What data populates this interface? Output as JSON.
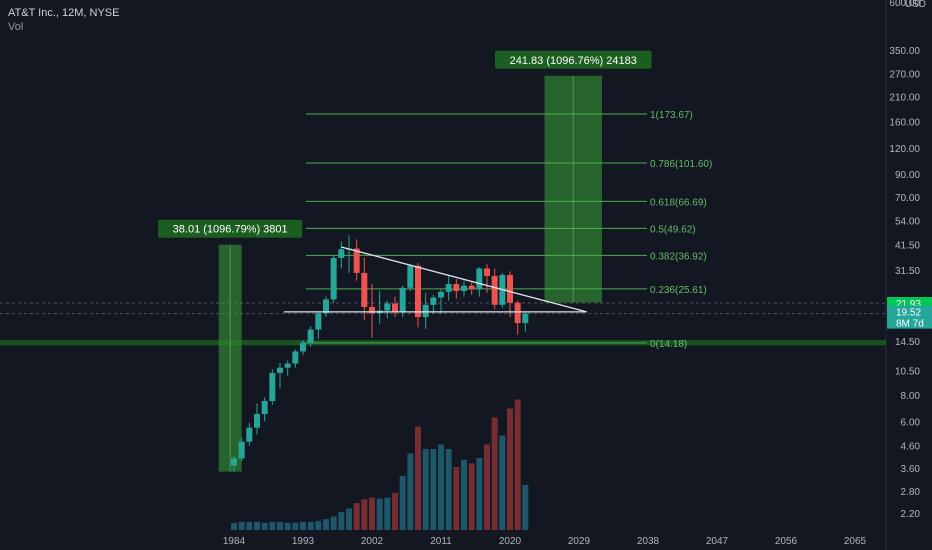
{
  "header": {
    "symbol": "AT&T Inc., 12M, NYSE",
    "vol_label": "Vol",
    "currency": "USD"
  },
  "colors": {
    "bg": "#131722",
    "up": "#26a69a",
    "down": "#ef5350",
    "fib": "#4caf50",
    "box": "#1b5e20",
    "label_bg": "#1b5e20",
    "axis_text": "#b2b5be"
  },
  "chart_data": {
    "type": "candlestick",
    "y_scale": "log",
    "y_ticks": [
      2.2,
      2.8,
      3.6,
      4.6,
      6.0,
      8.0,
      10.5,
      14.5,
      19.52,
      21.93,
      31.5,
      41.5,
      54.0,
      70.0,
      90.0,
      120.0,
      160.0,
      210.0,
      270.0,
      350.0,
      600.0
    ],
    "x_ticks": [
      "1984",
      "1993",
      "2002",
      "2011",
      "2020",
      "2029",
      "2038",
      "2047",
      "2056",
      "2065"
    ],
    "candles": [
      {
        "year": 1984,
        "o": 3.7,
        "h": 4.1,
        "l": 3.45,
        "c": 4.0
      },
      {
        "year": 1985,
        "o": 4.0,
        "h": 5.0,
        "l": 3.9,
        "c": 4.8
      },
      {
        "year": 1986,
        "o": 4.8,
        "h": 5.9,
        "l": 4.6,
        "c": 5.6
      },
      {
        "year": 1987,
        "o": 5.6,
        "h": 7.3,
        "l": 5.2,
        "c": 6.5
      },
      {
        "year": 1988,
        "o": 6.5,
        "h": 7.8,
        "l": 6.0,
        "c": 7.5
      },
      {
        "year": 1989,
        "o": 7.5,
        "h": 10.6,
        "l": 7.2,
        "c": 10.2
      },
      {
        "year": 1990,
        "o": 10.2,
        "h": 11.4,
        "l": 8.6,
        "c": 10.8
      },
      {
        "year": 1991,
        "o": 10.8,
        "h": 11.7,
        "l": 9.9,
        "c": 11.3
      },
      {
        "year": 1992,
        "o": 11.3,
        "h": 13.2,
        "l": 10.8,
        "c": 12.9
      },
      {
        "year": 1993,
        "o": 12.9,
        "h": 14.6,
        "l": 12.4,
        "c": 14.2
      },
      {
        "year": 1994,
        "o": 14.2,
        "h": 17.0,
        "l": 13.6,
        "c": 16.4
      },
      {
        "year": 1995,
        "o": 16.4,
        "h": 20.0,
        "l": 14.8,
        "c": 19.6
      },
      {
        "year": 1996,
        "o": 19.6,
        "h": 23.5,
        "l": 18.8,
        "c": 22.8
      },
      {
        "year": 1997,
        "o": 22.8,
        "h": 37.0,
        "l": 21.9,
        "c": 35.9
      },
      {
        "year": 1998,
        "o": 35.9,
        "h": 43.0,
        "l": 32.0,
        "c": 39.5
      },
      {
        "year": 1999,
        "o": 39.5,
        "h": 46.0,
        "l": 30.5,
        "c": 39.8
      },
      {
        "year": 2000,
        "o": 39.8,
        "h": 44.0,
        "l": 28.0,
        "c": 30.5
      },
      {
        "year": 2001,
        "o": 30.5,
        "h": 36.0,
        "l": 18.2,
        "c": 21.0
      },
      {
        "year": 2002,
        "o": 21.0,
        "h": 27.0,
        "l": 15.0,
        "c": 19.6
      },
      {
        "year": 2003,
        "o": 19.6,
        "h": 25.0,
        "l": 17.5,
        "c": 20.2
      },
      {
        "year": 2004,
        "o": 20.2,
        "h": 22.5,
        "l": 18.5,
        "c": 21.8
      },
      {
        "year": 2005,
        "o": 21.8,
        "h": 23.5,
        "l": 18.8,
        "c": 19.8
      },
      {
        "year": 2006,
        "o": 19.8,
        "h": 26.5,
        "l": 18.8,
        "c": 25.9
      },
      {
        "year": 2007,
        "o": 25.9,
        "h": 33.5,
        "l": 25.0,
        "c": 33.0
      },
      {
        "year": 2008,
        "o": 33.0,
        "h": 34.0,
        "l": 16.8,
        "c": 18.8
      },
      {
        "year": 2009,
        "o": 18.8,
        "h": 24.5,
        "l": 16.5,
        "c": 21.5
      },
      {
        "year": 2010,
        "o": 21.5,
        "h": 24.0,
        "l": 19.5,
        "c": 23.3
      },
      {
        "year": 2011,
        "o": 23.3,
        "h": 25.5,
        "l": 19.5,
        "c": 24.8
      },
      {
        "year": 2012,
        "o": 24.8,
        "h": 29.5,
        "l": 22.5,
        "c": 27.0
      },
      {
        "year": 2013,
        "o": 27.0,
        "h": 28.5,
        "l": 23.0,
        "c": 25.0
      },
      {
        "year": 2014,
        "o": 25.0,
        "h": 28.0,
        "l": 23.5,
        "c": 26.5
      },
      {
        "year": 2015,
        "o": 26.5,
        "h": 27.5,
        "l": 24.0,
        "c": 25.5
      },
      {
        "year": 2016,
        "o": 25.5,
        "h": 32.5,
        "l": 23.5,
        "c": 32.0
      },
      {
        "year": 2017,
        "o": 32.0,
        "h": 33.5,
        "l": 24.5,
        "c": 29.5
      },
      {
        "year": 2018,
        "o": 29.5,
        "h": 32.0,
        "l": 20.5,
        "c": 21.5
      },
      {
        "year": 2019,
        "o": 21.5,
        "h": 30.5,
        "l": 20.8,
        "c": 29.8
      },
      {
        "year": 2020,
        "o": 29.8,
        "h": 31.0,
        "l": 18.8,
        "c": 22.0
      },
      {
        "year": 2021,
        "o": 22.0,
        "h": 22.5,
        "l": 15.5,
        "c": 17.6
      },
      {
        "year": 2022,
        "o": 17.6,
        "h": 19.8,
        "l": 16.0,
        "c": 19.52
      }
    ],
    "volume": [
      {
        "year": 1984,
        "v": 0.8
      },
      {
        "year": 1985,
        "v": 0.9
      },
      {
        "year": 1986,
        "v": 0.9
      },
      {
        "year": 1987,
        "v": 0.9
      },
      {
        "year": 1988,
        "v": 0.8
      },
      {
        "year": 1989,
        "v": 0.9
      },
      {
        "year": 1990,
        "v": 0.9
      },
      {
        "year": 1991,
        "v": 0.8
      },
      {
        "year": 1992,
        "v": 0.8
      },
      {
        "year": 1993,
        "v": 0.9
      },
      {
        "year": 1994,
        "v": 0.9
      },
      {
        "year": 1995,
        "v": 1.0
      },
      {
        "year": 1996,
        "v": 1.2
      },
      {
        "year": 1997,
        "v": 1.5
      },
      {
        "year": 1998,
        "v": 2.0
      },
      {
        "year": 1999,
        "v": 2.4
      },
      {
        "year": 2000,
        "v": 3.0
      },
      {
        "year": 2001,
        "v": 3.4
      },
      {
        "year": 2002,
        "v": 3.6
      },
      {
        "year": 2003,
        "v": 3.5
      },
      {
        "year": 2004,
        "v": 3.6
      },
      {
        "year": 2005,
        "v": 4.1
      },
      {
        "year": 2006,
        "v": 6.0
      },
      {
        "year": 2007,
        "v": 8.5
      },
      {
        "year": 2008,
        "v": 11.5
      },
      {
        "year": 2009,
        "v": 9.0
      },
      {
        "year": 2010,
        "v": 9.0
      },
      {
        "year": 2011,
        "v": 9.5
      },
      {
        "year": 2012,
        "v": 9.0
      },
      {
        "year": 2013,
        "v": 7.0
      },
      {
        "year": 2014,
        "v": 7.8
      },
      {
        "year": 2015,
        "v": 7.4
      },
      {
        "year": 2016,
        "v": 8.0
      },
      {
        "year": 2017,
        "v": 9.5
      },
      {
        "year": 2018,
        "v": 12.5
      },
      {
        "year": 2019,
        "v": 10.5
      },
      {
        "year": 2020,
        "v": 13.5
      },
      {
        "year": 2021,
        "v": 14.5
      },
      {
        "year": 2022,
        "v": 5.0
      }
    ],
    "fib_levels": [
      {
        "label": "1(173.67)",
        "value": 173.67
      },
      {
        "label": "0.786(101.60)",
        "value": 101.6
      },
      {
        "label": "0.618(66.69)",
        "value": 66.69
      },
      {
        "label": "0.5(49.62)",
        "value": 49.62
      },
      {
        "label": "0.382(36.92)",
        "value": 36.92
      },
      {
        "label": "0.236(25.61)",
        "value": 25.61
      },
      {
        "label": "0(14.18)",
        "value": 14.18
      }
    ],
    "measure_boxes": [
      {
        "label": "38.01 (1096.79%) 3801",
        "from_year": 1982,
        "to_year": 1985,
        "low": 3.46,
        "high": 41.5
      },
      {
        "label": "241.83 (1096.76%) 24183",
        "from_year": 2024.5,
        "to_year": 2032,
        "low": 22.05,
        "high": 263.9
      }
    ],
    "trendlines": [
      {
        "from_year": 1998,
        "from_value": 40.5,
        "to_year": 2030,
        "to_value": 19.9
      },
      {
        "from_year": 1990.5,
        "from_value": 19.9,
        "to_year": 2030,
        "to_value": 19.9
      }
    ],
    "support_zone": {
      "low": 13.8,
      "high": 14.6
    },
    "price_badges": [
      {
        "text": "21.93",
        "value": 21.93,
        "bg": "#00c853"
      },
      {
        "text": "19.52",
        "value": 19.52,
        "bg": "#26a69a"
      },
      {
        "text": "8M 7d",
        "value": 18.3,
        "bg": "#26a69a"
      }
    ],
    "dashed_levels": [
      21.93,
      19.52
    ]
  }
}
